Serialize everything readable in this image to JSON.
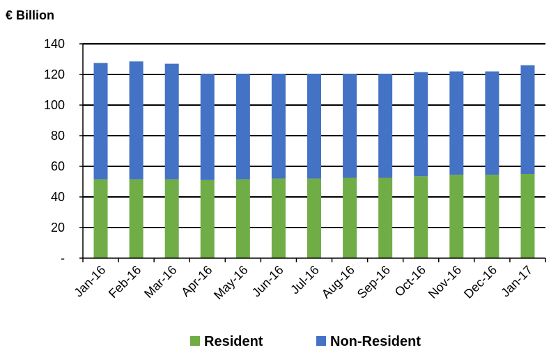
{
  "chart_data": {
    "type": "bar",
    "stacked": true,
    "unit_label": "€ Billion",
    "categories": [
      "Jan-16",
      "Feb-16",
      "Mar-16",
      "Apr-16",
      "May-16",
      "Jun-16",
      "Jul-16",
      "Aug-16",
      "Sep-16",
      "Oct-16",
      "Nov-16",
      "Dec-16",
      "Jan-17"
    ],
    "series": [
      {
        "name": "Resident",
        "color": "#70ad47",
        "values": [
          51.5,
          51.5,
          51.5,
          51,
          51.5,
          52,
          52,
          52.5,
          52.5,
          53.5,
          54.5,
          54.5,
          55
        ]
      },
      {
        "name": "Non-Resident",
        "color": "#4472c4",
        "values": [
          76,
          77,
          75.5,
          69.5,
          69,
          68.5,
          68.5,
          68,
          68,
          68,
          67.5,
          67.5,
          71
        ]
      }
    ],
    "ylim": [
      0,
      140
    ],
    "yticks": [
      0,
      20,
      40,
      60,
      80,
      100,
      120,
      140
    ],
    "ytick_labels": [
      "-",
      "20",
      "40",
      "60",
      "80",
      "100",
      "120",
      "140"
    ],
    "grid": true,
    "legend_position": "bottom"
  }
}
